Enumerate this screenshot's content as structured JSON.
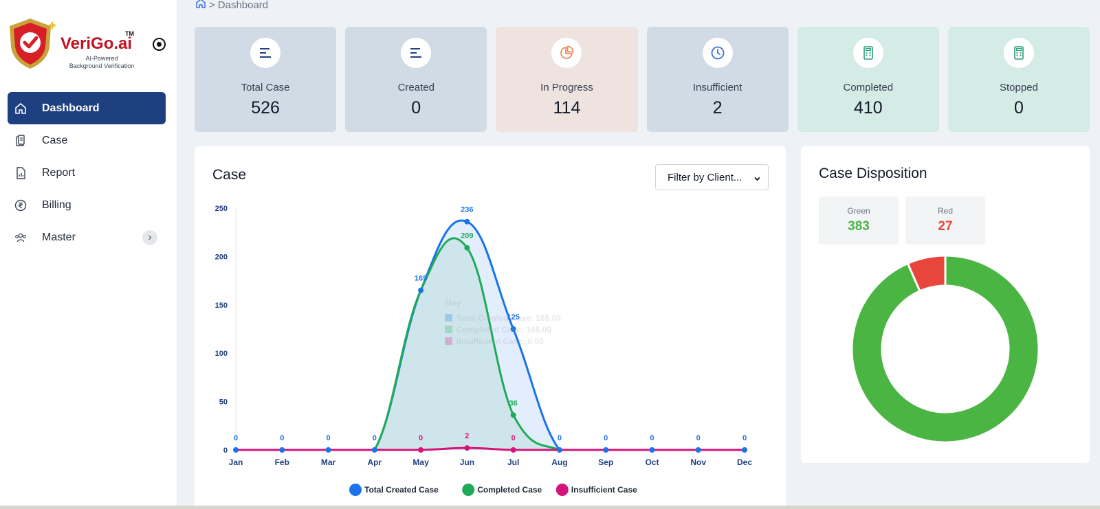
{
  "brand": {
    "name": "VeriGo.ai",
    "tm": "TM",
    "tagline_line1": "AI-Powered",
    "tagline_line2": "Background Verification"
  },
  "sidebar": {
    "items": [
      {
        "label": "Dashboard",
        "icon": "home-icon",
        "active": true
      },
      {
        "label": "Case",
        "icon": "clipboard-icon",
        "active": false
      },
      {
        "label": "Report",
        "icon": "report-icon",
        "active": false
      },
      {
        "label": "Billing",
        "icon": "rupee-icon",
        "active": false
      },
      {
        "label": "Master",
        "icon": "users-icon",
        "active": false
      }
    ]
  },
  "breadcrumb": {
    "separator": ">",
    "current": "Dashboard"
  },
  "cards": [
    {
      "label": "Total Case",
      "value": "526",
      "icon": "list-icon",
      "bg": "#d1dbe6",
      "icon_color": "#1e3f80"
    },
    {
      "label": "Created",
      "value": "0",
      "icon": "list-icon",
      "bg": "#d1dbe6",
      "icon_color": "#1e3f80"
    },
    {
      "label": "In Progress",
      "value": "114",
      "icon": "pie-icon",
      "bg": "#efe3e0",
      "icon_color": "#f0875a"
    },
    {
      "label": "Insufficient",
      "value": "2",
      "icon": "clock-icon",
      "bg": "#d1dbe6",
      "icon_color": "#3b6fd8"
    },
    {
      "label": "Completed",
      "value": "410",
      "icon": "calculator-icon",
      "bg": "#d5ebe6",
      "icon_color": "#2a9d72"
    },
    {
      "label": "Stopped",
      "value": "0",
      "icon": "calculator-icon",
      "bg": "#d5ebe6",
      "icon_color": "#2a9d72"
    }
  ],
  "case_panel": {
    "title": "Case",
    "filter_label": "Filter by Client..."
  },
  "chart_data": {
    "type": "area",
    "categories": [
      "Jan",
      "Feb",
      "Mar",
      "Apr",
      "May",
      "Jun",
      "Jul",
      "Aug",
      "Sep",
      "Oct",
      "Nov",
      "Dec"
    ],
    "ylim": [
      0,
      250
    ],
    "yticks": [
      0,
      50,
      100,
      150,
      200,
      250
    ],
    "series": [
      {
        "name": "Total Created Case",
        "color": "#1a73e8",
        "values": [
          0,
          0,
          0,
          0,
          165,
          236,
          125,
          0,
          0,
          0,
          0,
          0
        ],
        "labels": [
          "0",
          "0",
          "0",
          "0",
          "165",
          "236",
          "125",
          "0",
          "0",
          "0",
          "0",
          "0"
        ]
      },
      {
        "name": "Completed Case",
        "color": "#1faa59",
        "values": [
          0,
          0,
          0,
          0,
          165,
          209,
          36,
          0,
          0,
          0,
          0,
          0
        ],
        "labels": [
          "",
          "",
          "",
          "",
          "",
          "209",
          "36",
          "",
          "",
          "",
          "",
          ""
        ]
      },
      {
        "name": "Insufficient Case",
        "color": "#d6137a",
        "values": [
          0,
          0,
          0,
          0,
          0,
          2,
          0,
          0,
          0,
          0,
          0,
          0
        ],
        "labels": [
          "",
          "",
          "",
          "",
          "0",
          "2",
          "0",
          "",
          "",
          "",
          "",
          ""
        ]
      }
    ],
    "tooltip": {
      "title": "May",
      "rows": [
        "Total Created Case: 165.00",
        "Completed Case: 165.00",
        "Insufficient Case: 0.00"
      ]
    },
    "legend_position": "bottom"
  },
  "disposition": {
    "title": "Case Disposition",
    "green_label": "Green",
    "green_value": "383",
    "red_label": "Red",
    "red_value": "27",
    "green_color": "#4bb543",
    "red_color": "#e8453c",
    "values": [
      383,
      27
    ]
  }
}
